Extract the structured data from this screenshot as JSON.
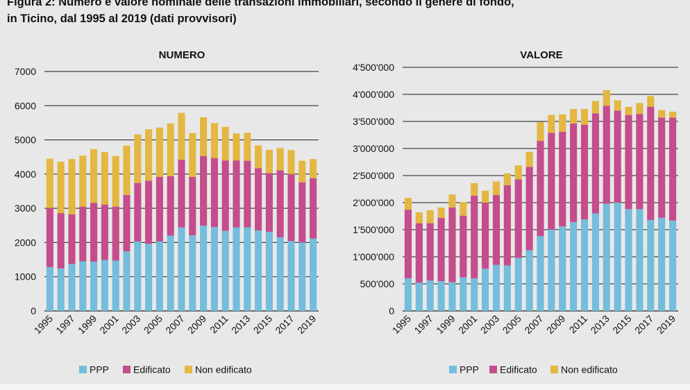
{
  "figure": {
    "title_line1": "Figura 2: Numero e valore nominale delle transazioni immobiliari, secondo il genere di fondo,",
    "title_line2": "in Ticino, dal 1995 al 2019 (dati provvisori)"
  },
  "colors": {
    "PPP": "#74bddc",
    "Edificato": "#c44d8c",
    "Non edificato": "#e3b742",
    "grid": "#1a1a1a"
  },
  "chart_data": [
    {
      "type": "bar",
      "stacked": true,
      "title": "NUMERO",
      "xlabel": "",
      "ylabel": "",
      "categories": [
        "1995",
        "1996",
        "1997",
        "1998",
        "1999",
        "2000",
        "2001",
        "2002",
        "2003",
        "2004",
        "2005",
        "2006",
        "2007",
        "2008",
        "2009",
        "2010",
        "2011",
        "2012",
        "2013",
        "2014",
        "2015",
        "2016",
        "2017",
        "2018",
        "2019"
      ],
      "x_tick_labels": [
        "1995",
        "1997",
        "1999",
        "2001",
        "2003",
        "2005",
        "2007",
        "2009",
        "2011",
        "2013",
        "2015",
        "2017",
        "2019"
      ],
      "ylim": [
        0,
        7000
      ],
      "y_ticks": [
        0,
        1000,
        2000,
        3000,
        4000,
        5000,
        6000,
        7000
      ],
      "y_tick_labels": [
        "0",
        "1000",
        "2000",
        "3000",
        "4000",
        "5000",
        "6000",
        "7000"
      ],
      "grid": true,
      "legend_position": "bottom",
      "series": [
        {
          "name": "PPP",
          "values": [
            1280,
            1240,
            1370,
            1450,
            1440,
            1490,
            1470,
            1740,
            2030,
            1960,
            2030,
            2200,
            2440,
            2210,
            2490,
            2450,
            2340,
            2440,
            2440,
            2350,
            2310,
            2150,
            2040,
            2000,
            2120
          ]
        },
        {
          "name": "Edificato",
          "values": [
            1730,
            1620,
            1450,
            1600,
            1720,
            1620,
            1580,
            1650,
            1710,
            1850,
            1890,
            1740,
            1980,
            1710,
            2040,
            2020,
            2060,
            1960,
            1950,
            1820,
            1720,
            1960,
            1960,
            1760,
            1760
          ]
        },
        {
          "name": "Non edificato",
          "values": [
            1440,
            1500,
            1620,
            1490,
            1570,
            1530,
            1480,
            1440,
            1420,
            1500,
            1440,
            1540,
            1370,
            1280,
            1130,
            1020,
            980,
            790,
            820,
            670,
            680,
            650,
            700,
            630,
            560
          ]
        }
      ]
    },
    {
      "type": "bar",
      "stacked": true,
      "title": "VALORE",
      "xlabel": "",
      "ylabel": "",
      "categories": [
        "1995",
        "1996",
        "1997",
        "1998",
        "1999",
        "2000",
        "2001",
        "2002",
        "2003",
        "2004",
        "2005",
        "2006",
        "2007",
        "2008",
        "2009",
        "2010",
        "2011",
        "2012",
        "2013",
        "2014",
        "2015",
        "2016",
        "2017",
        "2018",
        "2019"
      ],
      "x_tick_labels": [
        "1995",
        "1997",
        "1999",
        "2001",
        "2003",
        "2005",
        "2007",
        "2009",
        "2011",
        "2013",
        "2015",
        "2017",
        "2019"
      ],
      "ylim": [
        0,
        4500000
      ],
      "y_ticks": [
        0,
        500000,
        1000000,
        1500000,
        2000000,
        2500000,
        3000000,
        3500000,
        4000000,
        4500000
      ],
      "y_tick_labels": [
        "0",
        "500'000",
        "1'000'000",
        "1'500'000",
        "2'000'000",
        "2'500'000",
        "3'000'000",
        "3'500'000",
        "4'000'000",
        "4'500'000"
      ],
      "grid": true,
      "legend_position": "bottom",
      "series": [
        {
          "name": "PPP",
          "values": [
            600000,
            520000,
            560000,
            550000,
            530000,
            620000,
            600000,
            780000,
            850000,
            840000,
            980000,
            1120000,
            1380000,
            1500000,
            1560000,
            1640000,
            1690000,
            1800000,
            1980000,
            2000000,
            1880000,
            1880000,
            1680000,
            1720000,
            1670000
          ]
        },
        {
          "name": "Edificato",
          "values": [
            1270000,
            1100000,
            1060000,
            1170000,
            1380000,
            1140000,
            1530000,
            1220000,
            1290000,
            1480000,
            1450000,
            1540000,
            1760000,
            1790000,
            1750000,
            1820000,
            1750000,
            1850000,
            1810000,
            1700000,
            1740000,
            1760000,
            2090000,
            1850000,
            1900000
          ]
        },
        {
          "name": "Non edificato",
          "values": [
            220000,
            200000,
            240000,
            190000,
            240000,
            250000,
            230000,
            220000,
            250000,
            220000,
            260000,
            280000,
            350000,
            330000,
            320000,
            270000,
            290000,
            230000,
            290000,
            190000,
            150000,
            200000,
            200000,
            140000,
            110000
          ]
        }
      ]
    }
  ]
}
